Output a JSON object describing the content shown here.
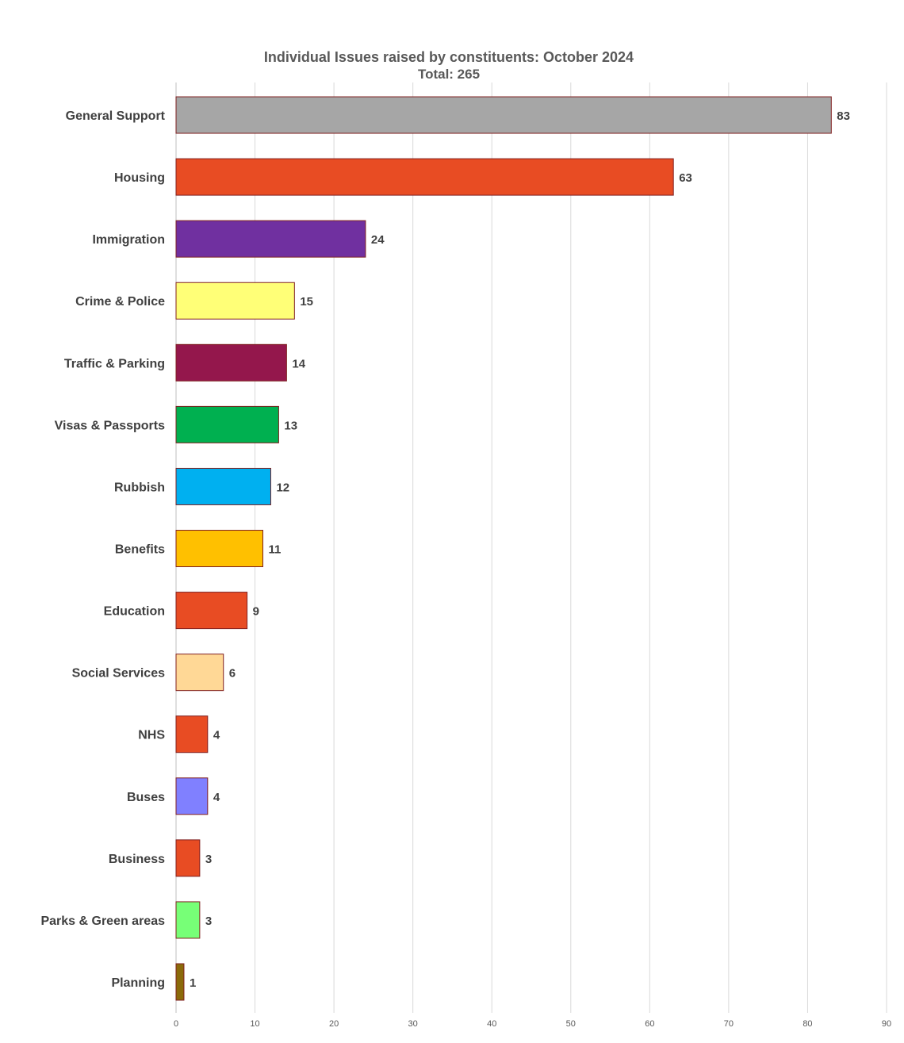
{
  "chart_data": {
    "type": "bar",
    "orientation": "horizontal",
    "title": "Individual Issues raised by constituents: October 2024",
    "subtitle": "Total: 265",
    "xlabel": "",
    "ylabel": "",
    "xlim": [
      0,
      90
    ],
    "x_ticks": [
      0,
      10,
      20,
      30,
      40,
      50,
      60,
      70,
      80,
      90
    ],
    "grid": "vertical",
    "legend": "none",
    "bar_border_color": "#7f1f1f",
    "categories": [
      "General Support",
      "Housing",
      "Immigration",
      "Crime & Police",
      "Traffic & Parking",
      "Visas & Passports",
      "Rubbish",
      "Benefits",
      "Education",
      "Social Services",
      "NHS",
      "Buses",
      "Business",
      "Parks & Green areas",
      "Planning"
    ],
    "values": [
      83,
      63,
      24,
      15,
      14,
      13,
      12,
      11,
      9,
      6,
      4,
      4,
      3,
      3,
      1
    ],
    "colors": [
      "#a6a6a6",
      "#e84c23",
      "#7030a0",
      "#ffff77",
      "#94174c",
      "#00b050",
      "#00b0f0",
      "#ffc000",
      "#e84c23",
      "#ffd896",
      "#e84c23",
      "#8080ff",
      "#e84c23",
      "#77ff77",
      "#8b6a0a"
    ]
  }
}
